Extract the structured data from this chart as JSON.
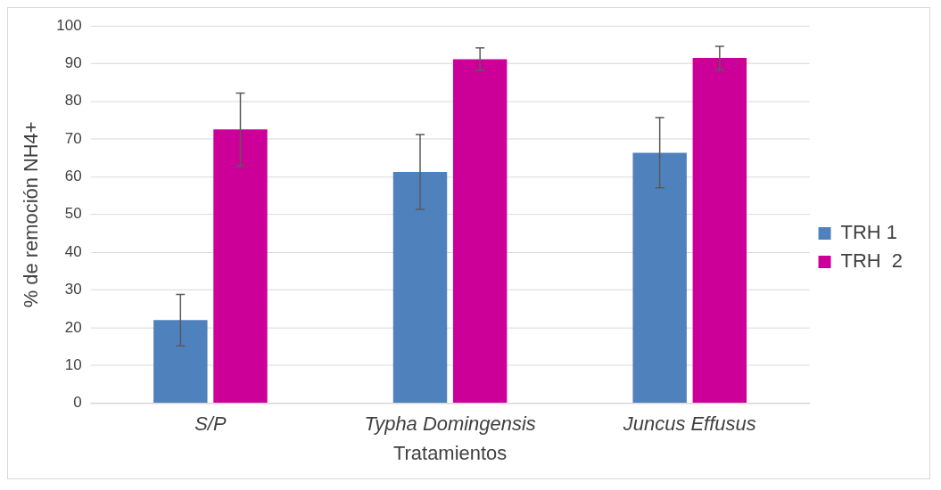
{
  "chart_data": {
    "type": "bar",
    "xlabel": "Tratamientos",
    "ylabel": "% de remoción NH4+",
    "categories": [
      "S/P",
      "Typha Domingensis",
      "Juncus Effusus"
    ],
    "series": [
      {
        "name": "TRH 1",
        "color": "#4f81bd",
        "values": [
          22,
          61.3,
          66.4
        ],
        "errors": [
          6.8,
          9.9,
          9.3
        ]
      },
      {
        "name": "TRH  2",
        "color": "#cc0099",
        "values": [
          72.6,
          91.2,
          91.5
        ],
        "errors": [
          9.6,
          3,
          3.1
        ]
      }
    ],
    "ylim": [
      0,
      100
    ],
    "yticks": [
      0,
      10,
      20,
      30,
      40,
      50,
      60,
      70,
      80,
      90,
      100
    ],
    "grid": "y",
    "legend": "right"
  }
}
